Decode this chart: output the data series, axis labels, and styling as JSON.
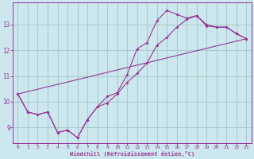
{
  "background_color": "#cce8ee",
  "grid_color": "#aacccc",
  "line_color": "#993399",
  "marker": "D",
  "marker_size": 2.0,
  "xlabel": "Windchill (Refroidissement éolien,°C)",
  "xlim": [
    -0.5,
    23.5
  ],
  "ylim": [
    8.4,
    13.85
  ],
  "yticks": [
    9,
    10,
    11,
    12,
    13
  ],
  "xticks": [
    0,
    1,
    2,
    3,
    4,
    5,
    6,
    7,
    8,
    9,
    10,
    11,
    12,
    13,
    14,
    15,
    16,
    17,
    18,
    19,
    20,
    21,
    22,
    23
  ],
  "lines": [
    {
      "x": [
        0,
        1,
        2,
        3,
        4,
        5,
        6,
        7,
        8,
        9,
        10,
        11,
        12,
        13,
        14,
        15,
        16,
        17,
        18,
        19,
        20,
        21,
        22,
        23
      ],
      "y": [
        10.3,
        9.6,
        9.5,
        9.6,
        8.8,
        8.9,
        8.6,
        9.3,
        9.8,
        10.2,
        10.35,
        11.05,
        12.05,
        12.3,
        13.15,
        13.55,
        13.4,
        13.25,
        13.35,
        12.95,
        12.9,
        12.9,
        12.65,
        12.45
      ]
    },
    {
      "x": [
        0,
        1,
        2,
        3,
        4,
        5,
        6,
        7,
        8,
        9,
        10,
        11,
        12,
        13,
        14,
        15,
        16,
        17,
        18,
        19,
        20,
        21,
        22,
        23
      ],
      "y": [
        10.3,
        9.6,
        9.5,
        9.6,
        8.8,
        8.9,
        8.6,
        9.3,
        9.8,
        9.95,
        10.3,
        10.75,
        11.1,
        11.5,
        12.2,
        12.5,
        12.9,
        13.2,
        13.35,
        13.0,
        12.9,
        12.9,
        12.65,
        12.45
      ]
    },
    {
      "x": [
        0,
        23
      ],
      "y": [
        10.3,
        12.45
      ]
    }
  ]
}
